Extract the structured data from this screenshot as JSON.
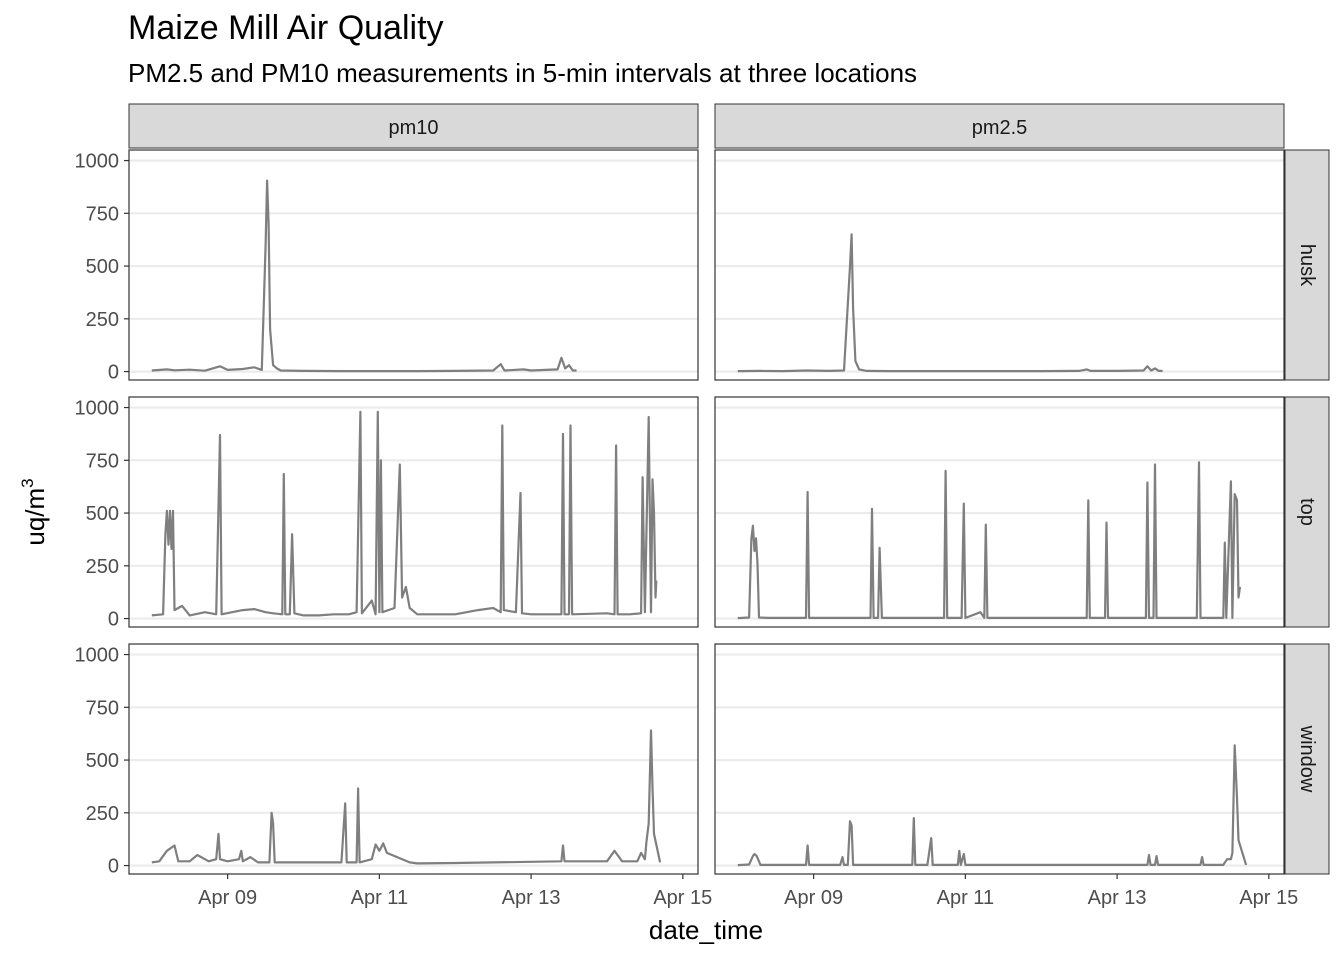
{
  "chart_data": {
    "type": "line",
    "title": "Maize Mill Air Quality",
    "subtitle": "PM2.5 and PM10 measurements in 5-min intervals at three locations",
    "xlabel": "date_time",
    "ylabel_main": "uq/m",
    "ylabel_sup": "3",
    "columns": [
      "pm10",
      "pm2.5"
    ],
    "rows": [
      "husk",
      "top",
      "window"
    ],
    "xlim": [
      7.7,
      15.2
    ],
    "ylim": [
      -40,
      1050
    ],
    "xticks": [
      {
        "x": 9,
        "label": "Apr 09"
      },
      {
        "x": 11,
        "label": "Apr 11"
      },
      {
        "x": 13,
        "label": "Apr 13"
      },
      {
        "x": 15,
        "label": "Apr 15"
      }
    ],
    "yticks": [
      0,
      250,
      500,
      750,
      1000
    ],
    "grid": true,
    "line_color": "#7f7f7f",
    "panels": [
      {
        "col": "pm10",
        "row": "husk",
        "series": [
          [
            8.0,
            5
          ],
          [
            8.2,
            10
          ],
          [
            8.3,
            6
          ],
          [
            8.5,
            9
          ],
          [
            8.7,
            4
          ],
          [
            8.9,
            25
          ],
          [
            9.0,
            8
          ],
          [
            9.2,
            12
          ],
          [
            9.35,
            20
          ],
          [
            9.45,
            8
          ],
          [
            9.5,
            600
          ],
          [
            9.52,
            905
          ],
          [
            9.54,
            700
          ],
          [
            9.56,
            200
          ],
          [
            9.6,
            30
          ],
          [
            9.65,
            15
          ],
          [
            9.7,
            5
          ],
          [
            10.0,
            3
          ],
          [
            10.5,
            2
          ],
          [
            11.0,
            2
          ],
          [
            11.5,
            2
          ],
          [
            12.0,
            3
          ],
          [
            12.5,
            5
          ],
          [
            12.6,
            35
          ],
          [
            12.65,
            5
          ],
          [
            12.9,
            10
          ],
          [
            13.0,
            5
          ],
          [
            13.35,
            10
          ],
          [
            13.4,
            65
          ],
          [
            13.45,
            15
          ],
          [
            13.5,
            30
          ],
          [
            13.55,
            5
          ],
          [
            13.6,
            5
          ]
        ]
      },
      {
        "col": "pm2.5",
        "row": "husk",
        "series": [
          [
            8.0,
            2
          ],
          [
            8.3,
            3
          ],
          [
            8.6,
            2
          ],
          [
            8.9,
            5
          ],
          [
            9.2,
            3
          ],
          [
            9.4,
            5
          ],
          [
            9.48,
            500
          ],
          [
            9.5,
            650
          ],
          [
            9.52,
            300
          ],
          [
            9.55,
            50
          ],
          [
            9.6,
            10
          ],
          [
            9.7,
            3
          ],
          [
            10.0,
            2
          ],
          [
            10.5,
            2
          ],
          [
            11.0,
            2
          ],
          [
            11.5,
            2
          ],
          [
            12.0,
            2
          ],
          [
            12.5,
            3
          ],
          [
            12.6,
            10
          ],
          [
            12.65,
            3
          ],
          [
            13.0,
            3
          ],
          [
            13.35,
            5
          ],
          [
            13.4,
            25
          ],
          [
            13.45,
            5
          ],
          [
            13.5,
            15
          ],
          [
            13.55,
            3
          ],
          [
            13.6,
            3
          ]
        ]
      },
      {
        "col": "pm10",
        "row": "top",
        "series": [
          [
            8.0,
            15
          ],
          [
            8.15,
            20
          ],
          [
            8.18,
            400
          ],
          [
            8.2,
            510
          ],
          [
            8.22,
            350
          ],
          [
            8.24,
            510
          ],
          [
            8.26,
            330
          ],
          [
            8.28,
            510
          ],
          [
            8.3,
            40
          ],
          [
            8.4,
            60
          ],
          [
            8.5,
            15
          ],
          [
            8.7,
            30
          ],
          [
            8.85,
            20
          ],
          [
            8.9,
            870
          ],
          [
            8.92,
            20
          ],
          [
            9.2,
            40
          ],
          [
            9.35,
            45
          ],
          [
            9.5,
            30
          ],
          [
            9.6,
            25
          ],
          [
            9.72,
            20
          ],
          [
            9.74,
            685
          ],
          [
            9.76,
            20
          ],
          [
            9.82,
            20
          ],
          [
            9.85,
            400
          ],
          [
            9.88,
            25
          ],
          [
            10.0,
            15
          ],
          [
            10.2,
            15
          ],
          [
            10.4,
            20
          ],
          [
            10.6,
            20
          ],
          [
            10.7,
            30
          ],
          [
            10.75,
            980
          ],
          [
            10.77,
            25
          ],
          [
            10.9,
            85
          ],
          [
            10.95,
            20
          ],
          [
            10.98,
            980
          ],
          [
            11.0,
            30
          ],
          [
            11.02,
            750
          ],
          [
            11.04,
            30
          ],
          [
            11.2,
            50
          ],
          [
            11.27,
            730
          ],
          [
            11.3,
            100
          ],
          [
            11.35,
            150
          ],
          [
            11.4,
            50
          ],
          [
            11.5,
            20
          ],
          [
            12.0,
            20
          ],
          [
            12.3,
            40
          ],
          [
            12.5,
            50
          ],
          [
            12.6,
            30
          ],
          [
            12.62,
            915
          ],
          [
            12.64,
            40
          ],
          [
            12.8,
            30
          ],
          [
            12.86,
            595
          ],
          [
            12.88,
            25
          ],
          [
            13.0,
            20
          ],
          [
            13.2,
            20
          ],
          [
            13.4,
            20
          ],
          [
            13.42,
            875
          ],
          [
            13.44,
            20
          ],
          [
            13.5,
            20
          ],
          [
            13.52,
            915
          ],
          [
            13.54,
            20
          ],
          [
            14.0,
            25
          ],
          [
            14.1,
            20
          ],
          [
            14.12,
            820
          ],
          [
            14.14,
            20
          ],
          [
            14.3,
            20
          ],
          [
            14.45,
            25
          ],
          [
            14.47,
            670
          ],
          [
            14.5,
            30
          ],
          [
            14.55,
            955
          ],
          [
            14.58,
            30
          ],
          [
            14.6,
            660
          ],
          [
            14.62,
            500
          ],
          [
            14.64,
            100
          ],
          [
            14.65,
            180
          ]
        ]
      },
      {
        "col": "pm2.5",
        "row": "top",
        "series": [
          [
            8.0,
            2
          ],
          [
            8.15,
            5
          ],
          [
            8.18,
            380
          ],
          [
            8.2,
            440
          ],
          [
            8.22,
            320
          ],
          [
            8.24,
            380
          ],
          [
            8.26,
            260
          ],
          [
            8.28,
            5
          ],
          [
            8.4,
            3
          ],
          [
            8.9,
            3
          ],
          [
            8.92,
            600
          ],
          [
            8.94,
            3
          ],
          [
            9.5,
            3
          ],
          [
            9.75,
            3
          ],
          [
            9.77,
            520
          ],
          [
            9.79,
            3
          ],
          [
            9.85,
            3
          ],
          [
            9.87,
            335
          ],
          [
            9.9,
            3
          ],
          [
            10.5,
            3
          ],
          [
            10.72,
            3
          ],
          [
            10.74,
            700
          ],
          [
            10.76,
            3
          ],
          [
            10.95,
            3
          ],
          [
            10.98,
            545
          ],
          [
            11.0,
            3
          ],
          [
            11.2,
            30
          ],
          [
            11.25,
            3
          ],
          [
            11.27,
            445
          ],
          [
            11.29,
            3
          ],
          [
            12.0,
            3
          ],
          [
            12.6,
            3
          ],
          [
            12.62,
            560
          ],
          [
            12.64,
            3
          ],
          [
            12.84,
            3
          ],
          [
            12.86,
            455
          ],
          [
            12.88,
            3
          ],
          [
            13.38,
            3
          ],
          [
            13.4,
            645
          ],
          [
            13.42,
            3
          ],
          [
            13.48,
            3
          ],
          [
            13.5,
            730
          ],
          [
            13.52,
            3
          ],
          [
            14.05,
            3
          ],
          [
            14.08,
            740
          ],
          [
            14.1,
            3
          ],
          [
            14.4,
            3
          ],
          [
            14.42,
            360
          ],
          [
            14.44,
            3
          ],
          [
            14.5,
            650
          ],
          [
            14.52,
            3
          ],
          [
            14.55,
            590
          ],
          [
            14.58,
            560
          ],
          [
            14.6,
            100
          ],
          [
            14.62,
            150
          ]
        ]
      },
      {
        "col": "pm10",
        "row": "window",
        "series": [
          [
            8.0,
            15
          ],
          [
            8.1,
            20
          ],
          [
            8.2,
            70
          ],
          [
            8.3,
            95
          ],
          [
            8.35,
            20
          ],
          [
            8.5,
            20
          ],
          [
            8.6,
            50
          ],
          [
            8.75,
            20
          ],
          [
            8.85,
            30
          ],
          [
            8.88,
            150
          ],
          [
            8.9,
            30
          ],
          [
            9.0,
            20
          ],
          [
            9.15,
            30
          ],
          [
            9.18,
            70
          ],
          [
            9.2,
            20
          ],
          [
            9.3,
            40
          ],
          [
            9.4,
            15
          ],
          [
            9.55,
            15
          ],
          [
            9.58,
            250
          ],
          [
            9.6,
            200
          ],
          [
            9.62,
            15
          ],
          [
            9.8,
            15
          ],
          [
            10.0,
            15
          ],
          [
            10.5,
            15
          ],
          [
            10.55,
            295
          ],
          [
            10.57,
            15
          ],
          [
            10.7,
            15
          ],
          [
            10.72,
            365
          ],
          [
            10.74,
            15
          ],
          [
            10.9,
            30
          ],
          [
            10.95,
            100
          ],
          [
            11.0,
            70
          ],
          [
            11.05,
            105
          ],
          [
            11.1,
            60
          ],
          [
            11.4,
            15
          ],
          [
            11.5,
            10
          ],
          [
            12.0,
            12
          ],
          [
            12.5,
            15
          ],
          [
            13.0,
            18
          ],
          [
            13.4,
            20
          ],
          [
            13.42,
            95
          ],
          [
            13.44,
            20
          ],
          [
            13.6,
            20
          ],
          [
            14.0,
            20
          ],
          [
            14.1,
            70
          ],
          [
            14.2,
            20
          ],
          [
            14.4,
            20
          ],
          [
            14.45,
            60
          ],
          [
            14.5,
            30
          ],
          [
            14.52,
            110
          ],
          [
            14.55,
            200
          ],
          [
            14.58,
            640
          ],
          [
            14.6,
            370
          ],
          [
            14.62,
            150
          ],
          [
            14.7,
            15
          ]
        ]
      },
      {
        "col": "pm2.5",
        "row": "window",
        "series": [
          [
            8.0,
            2
          ],
          [
            8.15,
            5
          ],
          [
            8.2,
            45
          ],
          [
            8.22,
            55
          ],
          [
            8.25,
            45
          ],
          [
            8.3,
            3
          ],
          [
            8.5,
            3
          ],
          [
            8.9,
            3
          ],
          [
            8.92,
            95
          ],
          [
            8.94,
            3
          ],
          [
            9.2,
            3
          ],
          [
            9.35,
            3
          ],
          [
            9.38,
            40
          ],
          [
            9.4,
            3
          ],
          [
            9.45,
            3
          ],
          [
            9.48,
            210
          ],
          [
            9.5,
            190
          ],
          [
            9.52,
            3
          ],
          [
            10.0,
            3
          ],
          [
            10.3,
            3
          ],
          [
            10.32,
            225
          ],
          [
            10.34,
            3
          ],
          [
            10.5,
            3
          ],
          [
            10.55,
            130
          ],
          [
            10.57,
            3
          ],
          [
            10.9,
            3
          ],
          [
            10.92,
            70
          ],
          [
            10.94,
            3
          ],
          [
            10.98,
            55
          ],
          [
            11.0,
            3
          ],
          [
            11.5,
            3
          ],
          [
            12.0,
            3
          ],
          [
            12.5,
            3
          ],
          [
            13.0,
            3
          ],
          [
            13.4,
            3
          ],
          [
            13.42,
            50
          ],
          [
            13.44,
            3
          ],
          [
            13.5,
            3
          ],
          [
            13.52,
            45
          ],
          [
            13.54,
            3
          ],
          [
            14.0,
            3
          ],
          [
            14.1,
            3
          ],
          [
            14.12,
            40
          ],
          [
            14.14,
            3
          ],
          [
            14.4,
            3
          ],
          [
            14.45,
            30
          ],
          [
            14.5,
            30
          ],
          [
            14.52,
            60
          ],
          [
            14.55,
            570
          ],
          [
            14.58,
            320
          ],
          [
            14.6,
            120
          ],
          [
            14.7,
            3
          ]
        ]
      }
    ]
  }
}
